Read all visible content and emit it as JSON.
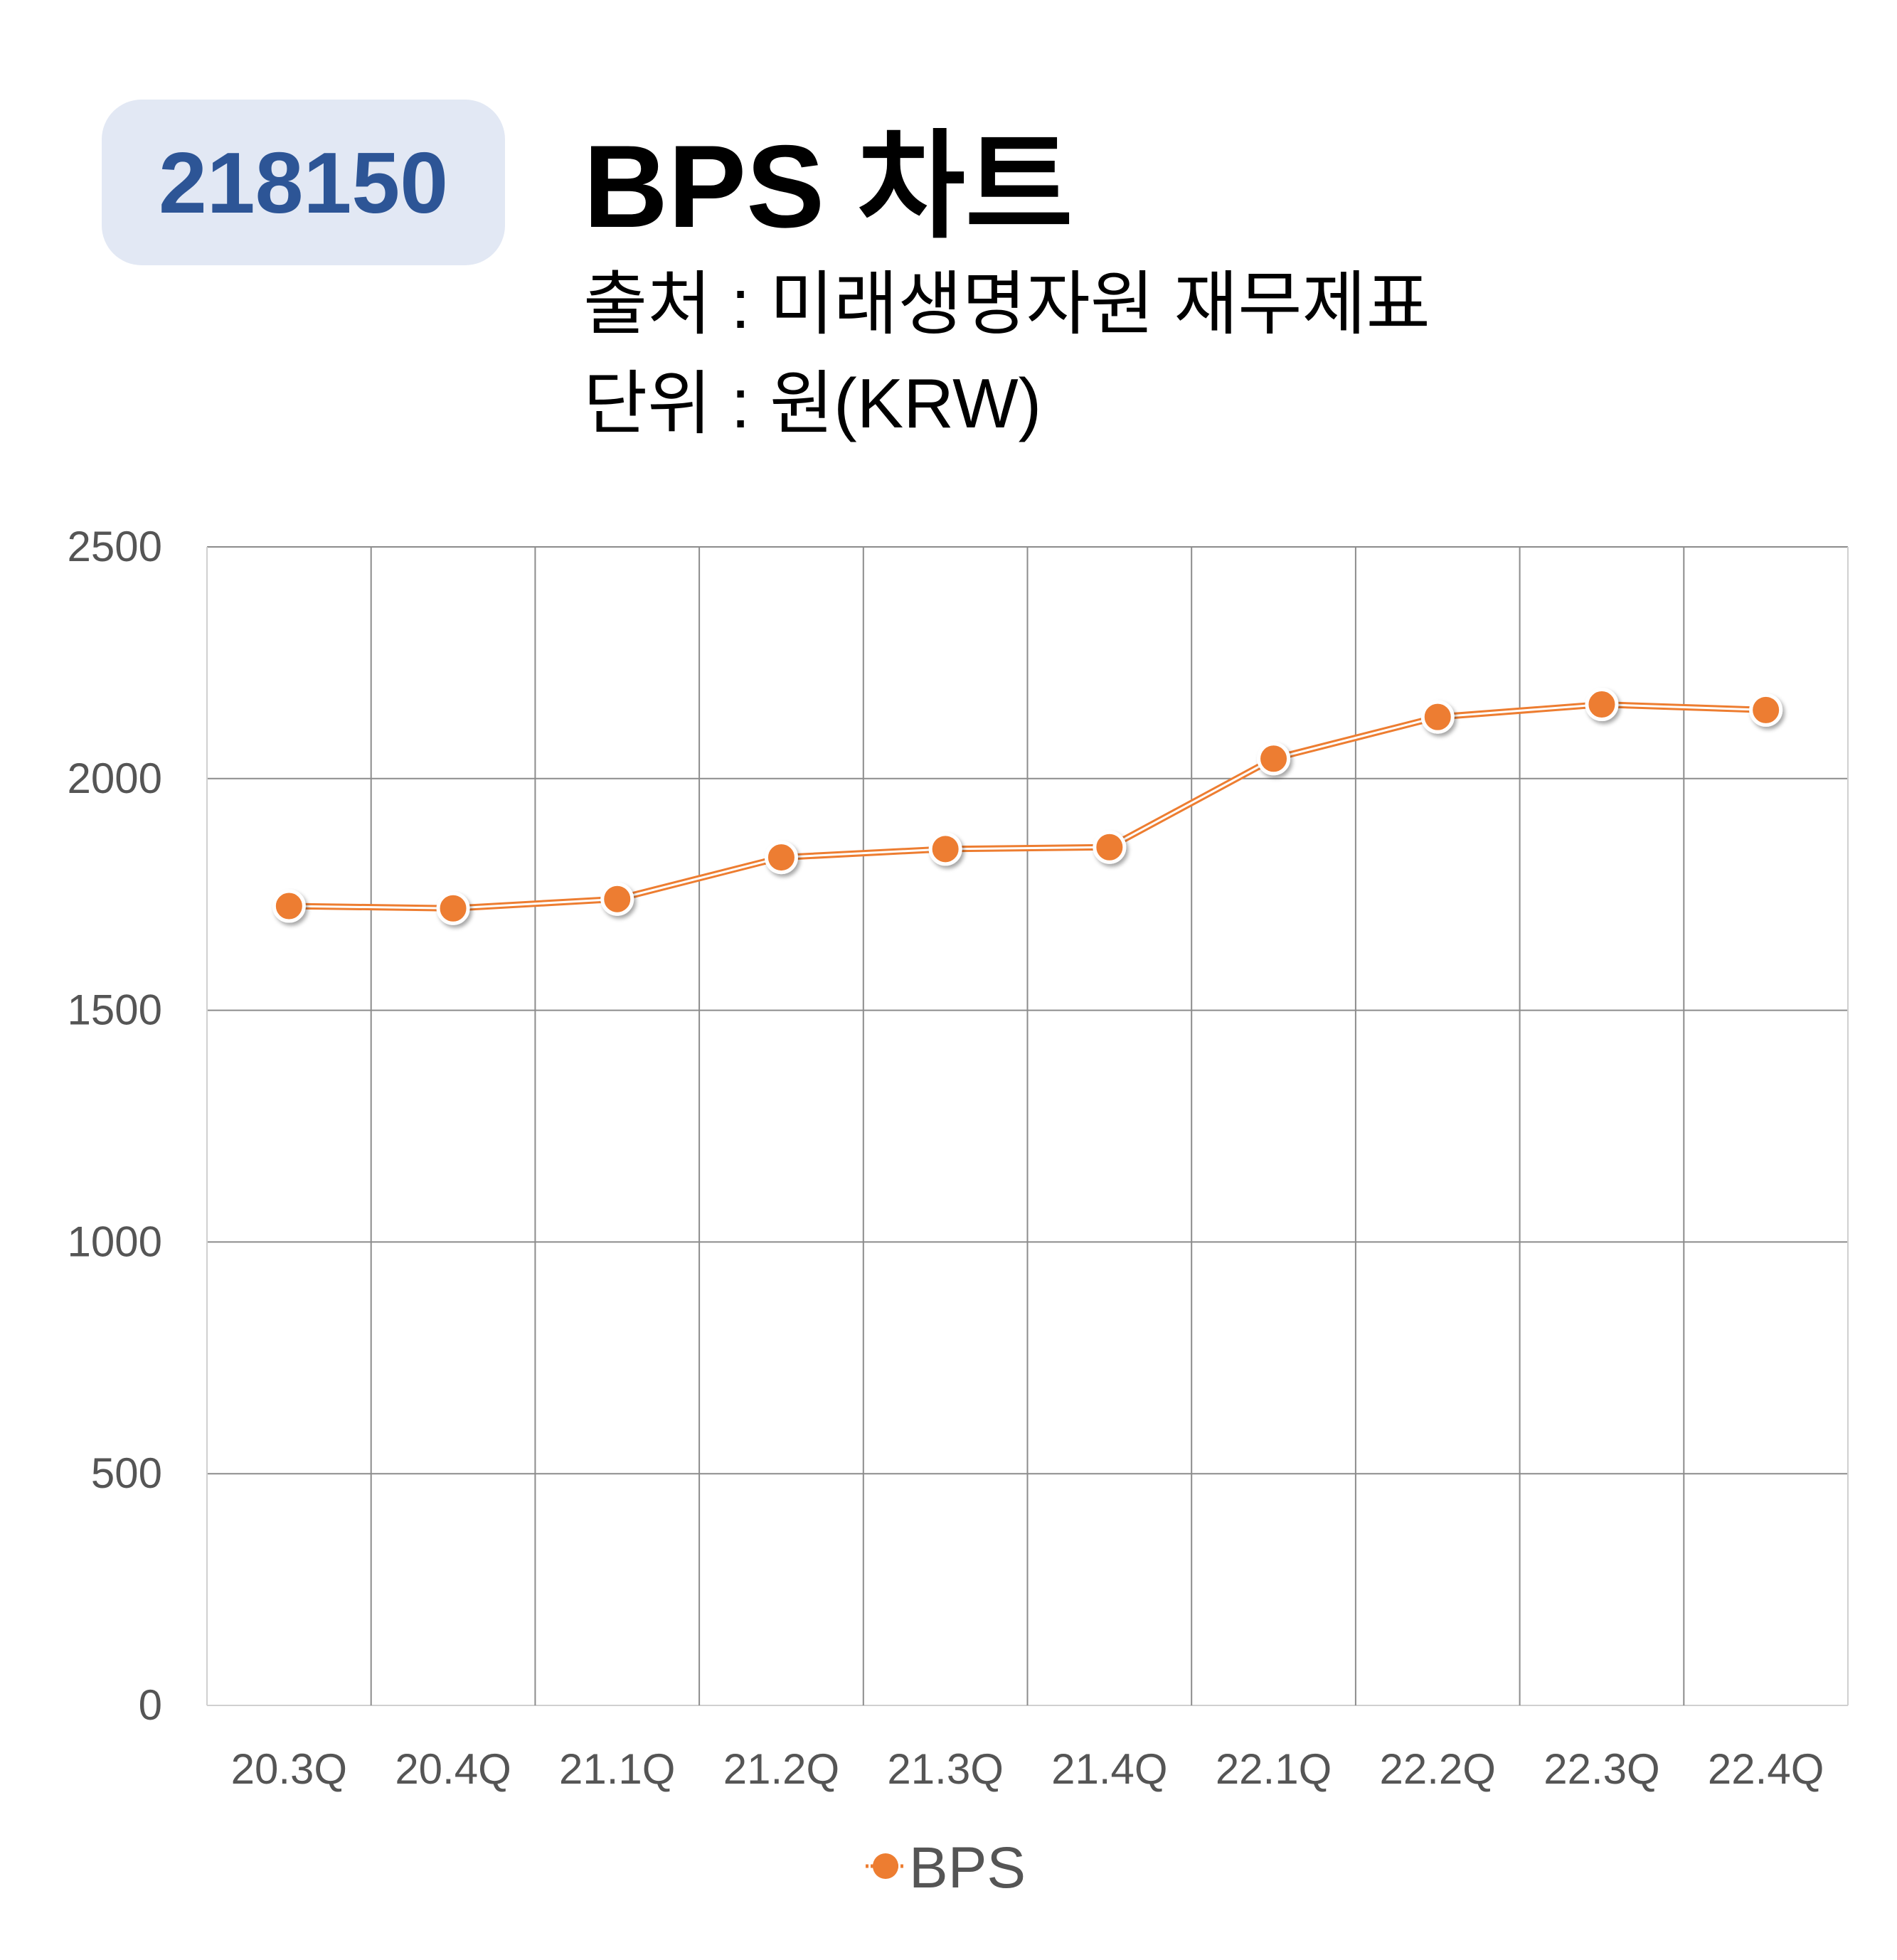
{
  "header": {
    "code": "218150",
    "title": "BPS 차트",
    "source": "출처 : 미래생명자원 재무제표",
    "unit": "단위 : 원(KRW)"
  },
  "colors": {
    "badge_bg": "#e2e8f4",
    "badge_text": "#2d5596",
    "series": "#ed7d31",
    "grid": "#8c8c8c",
    "tick_text": "#555555"
  },
  "chart_data": {
    "type": "line",
    "categories": [
      "20.3Q",
      "20.4Q",
      "21.1Q",
      "21.2Q",
      "21.3Q",
      "21.4Q",
      "22.1Q",
      "22.2Q",
      "22.3Q",
      "22.4Q"
    ],
    "series": [
      {
        "name": "BPS",
        "values": [
          1725,
          1720,
          1740,
          1830,
          1848,
          1852,
          2043,
          2133,
          2160,
          2148
        ]
      }
    ],
    "ylim": [
      0,
      2500
    ],
    "yticks": [
      0,
      500,
      1000,
      1500,
      2000,
      2500
    ],
    "grid": true,
    "legend": "bottom"
  }
}
